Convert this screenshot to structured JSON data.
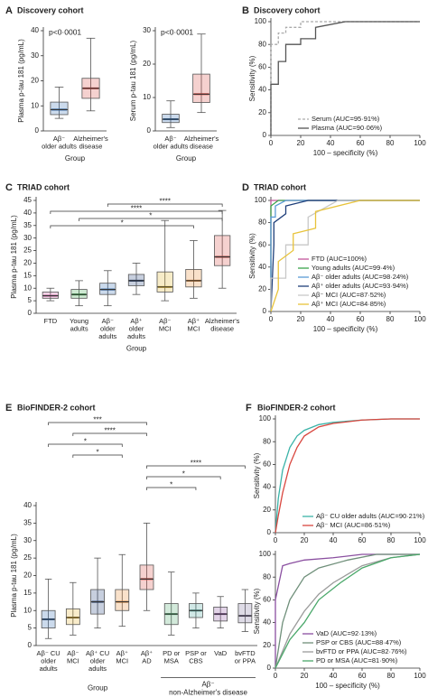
{
  "chart_data": [
    {
      "type": "box",
      "panel": "A",
      "title": "Discovery cohort",
      "annotation": "p<0·0001",
      "ylabel": "Plasma p-tau 181 (pg/mL)",
      "xlabel": "Group",
      "categories": [
        [
          "Aβ⁻",
          "older adults"
        ],
        [
          "Alzheimer's",
          "disease"
        ]
      ],
      "boxes": [
        [
          5,
          6.5,
          8.5,
          11.5,
          17.5
        ],
        [
          8,
          13,
          17,
          21,
          37
        ]
      ],
      "colors": [
        "#2f6db5",
        "#d9463e"
      ],
      "ylim": [
        0,
        40
      ],
      "yticks": [
        0,
        10,
        20,
        30,
        40
      ]
    },
    {
      "type": "box",
      "annotation": "p<0·0001",
      "ylabel": "Serum p-tau 181 (pg/mL)",
      "xlabel": "Group",
      "categories": [
        [
          "Aβ⁻",
          "older adults"
        ],
        [
          "Alzheimer's",
          "disease"
        ]
      ],
      "boxes": [
        [
          1,
          2.5,
          3.5,
          5,
          9
        ],
        [
          5.5,
          8.5,
          11,
          17,
          29
        ]
      ],
      "colors": [
        "#2f6db5",
        "#d9463e"
      ],
      "ylim": [
        0,
        30
      ],
      "yticks": [
        0,
        10,
        20,
        30
      ]
    },
    {
      "type": "line",
      "panel": "B",
      "title": "Discovery cohort",
      "xlabel": "100 – specificity (%)",
      "ylabel": "Sensitivity (%)",
      "xlim": [
        0,
        100
      ],
      "ylim": [
        0,
        100
      ],
      "xticks": [
        0,
        20,
        40,
        60,
        80,
        100
      ],
      "yticks": [
        0,
        20,
        40,
        60,
        80,
        100
      ],
      "legend": "lower right",
      "series": [
        {
          "name": "Serum (AUC=95·91%)",
          "color": "#aaaaaa",
          "dash": true,
          "x": [
            0,
            0,
            5,
            5,
            10,
            10,
            20,
            20,
            100
          ],
          "values": [
            0,
            80,
            80,
            90,
            90,
            95,
            95,
            100,
            100
          ]
        },
        {
          "name": "Plasma (AUC=90·06%)",
          "color": "#555555",
          "dash": false,
          "x": [
            0,
            0,
            5,
            5,
            10,
            10,
            20,
            20,
            30,
            30,
            50,
            100
          ],
          "values": [
            0,
            45,
            45,
            65,
            65,
            80,
            80,
            85,
            85,
            95,
            100,
            100
          ]
        }
      ]
    },
    {
      "type": "box",
      "panel": "C",
      "title": "TRIAD cohort",
      "ylabel": "Plasma p-tau 181 (pg/mL)",
      "xlabel": "Group",
      "categories": [
        [
          "FTD"
        ],
        [
          "Young",
          "adults"
        ],
        [
          "Aβ⁻",
          "older",
          "adults"
        ],
        [
          "Aβ⁺",
          "older",
          "adults"
        ],
        [
          "Aβ⁻",
          "MCI"
        ],
        [
          "Aβ⁺",
          "MCI"
        ],
        [
          "Alzheimer's",
          "disease"
        ]
      ],
      "boxes": [
        [
          5,
          6,
          7,
          8.5,
          10
        ],
        [
          3,
          6,
          7.5,
          9.5,
          13
        ],
        [
          3,
          7.5,
          9.5,
          12,
          17
        ],
        [
          7.5,
          11,
          13,
          15.5,
          20
        ],
        [
          5,
          8.5,
          10.5,
          16.5,
          37
        ],
        [
          6,
          10.5,
          13,
          17.5,
          29
        ],
        [
          10,
          19,
          22.5,
          31,
          41
        ]
      ],
      "colors": [
        "#c2569a",
        "#3aa34a",
        "#2f6db5",
        "#1f3f7a",
        "#e0b422",
        "#e8872a",
        "#d9463e"
      ],
      "ylim": [
        0,
        45
      ],
      "yticks": [
        0,
        5,
        10,
        15,
        20,
        25,
        30,
        35,
        40,
        45
      ],
      "comparisons": [
        {
          "from": 2,
          "to": 6,
          "label": "****"
        },
        {
          "from": 0,
          "to": 6,
          "label": "****"
        },
        {
          "from": 1,
          "to": 6,
          "label": "*"
        },
        {
          "from": 0,
          "to": 5,
          "label": "*"
        }
      ]
    },
    {
      "type": "line",
      "panel": "D",
      "title": "TRIAD cohort",
      "xlabel": "100 – specificity (%)",
      "ylabel": "Sensitivity (%)",
      "xlim": [
        0,
        100
      ],
      "ylim": [
        0,
        100
      ],
      "xticks": [
        0,
        20,
        40,
        60,
        80,
        100
      ],
      "yticks": [
        0,
        20,
        40,
        60,
        80,
        100
      ],
      "legend": "lower right",
      "series": [
        {
          "name": "FTD (AUC=100%)",
          "color": "#c2569a",
          "dash": false,
          "x": [
            0,
            0,
            100
          ],
          "values": [
            0,
            100,
            100
          ]
        },
        {
          "name": "Young adults (AUC=99·4%)",
          "color": "#3aa34a",
          "dash": false,
          "x": [
            0,
            0,
            5,
            100
          ],
          "values": [
            0,
            95,
            100,
            100
          ]
        },
        {
          "name": "Aβ⁻ older adults (AUC=98·24%)",
          "color": "#5b9bd5",
          "dash": false,
          "x": [
            0,
            0,
            3,
            3,
            10,
            100
          ],
          "values": [
            0,
            85,
            85,
            95,
            100,
            100
          ]
        },
        {
          "name": "Aβ⁺ older adults (AUC=93·94%)",
          "color": "#1f3f7a",
          "dash": false,
          "x": [
            0,
            2,
            2,
            10,
            10,
            25,
            100
          ],
          "values": [
            0,
            60,
            80,
            88,
            95,
            100,
            100
          ]
        },
        {
          "name": "Aβ⁻ MCI (AUC=87·52%)",
          "color": "#c8c8c8",
          "dash": false,
          "x": [
            0,
            0,
            10,
            10,
            25,
            25,
            45,
            100
          ],
          "values": [
            0,
            30,
            30,
            60,
            60,
            85,
            100,
            100
          ]
        },
        {
          "name": "Aβ⁺ MCI (AUC=84·85%)",
          "color": "#e8c33a",
          "dash": false,
          "x": [
            0,
            5,
            5,
            15,
            15,
            30,
            30,
            60,
            100
          ],
          "values": [
            0,
            20,
            45,
            55,
            70,
            75,
            90,
            100,
            100
          ]
        }
      ]
    },
    {
      "type": "box",
      "panel": "E",
      "title": "BioFINDER-2 cohort",
      "ylabel": "Plasma p-tau 181 (pg/mL)",
      "xlabel": "Group",
      "group_label": [
        "Aβ⁻",
        "non-Alzheimer's disease"
      ],
      "categories": [
        [
          "Aβ⁻ CU",
          "older",
          "adults"
        ],
        [
          "Aβ⁻",
          "MCI"
        ],
        [
          "Aβ⁺ CU",
          "older",
          "adults"
        ],
        [
          "Aβ⁺",
          "MCI"
        ],
        [
          "Aβ⁺",
          "AD"
        ],
        [
          "PD or",
          "MSA"
        ],
        [
          "PSP or",
          "CBS"
        ],
        [
          "VaD"
        ],
        [
          "bvFTD",
          "or PPA"
        ]
      ],
      "boxes": [
        [
          2,
          5,
          7.5,
          10,
          19
        ],
        [
          3,
          6,
          8,
          10.5,
          18
        ],
        [
          5,
          9,
          12.5,
          16,
          25
        ],
        [
          5.5,
          10,
          12.5,
          16,
          26
        ],
        [
          10,
          16,
          19,
          23,
          35
        ],
        [
          3,
          6,
          9,
          12,
          21
        ],
        [
          5,
          8,
          10,
          12,
          15
        ],
        [
          5,
          7,
          9,
          11,
          14
        ],
        [
          4,
          6.5,
          8.5,
          12,
          16
        ]
      ],
      "colors": [
        "#2f6db5",
        "#e8b22a",
        "#1f3f7a",
        "#e8872a",
        "#d9463e",
        "#4aa86a",
        "#47a39a",
        "#8a4fa0",
        "#7c6f9c"
      ],
      "ylim": [
        0,
        40
      ],
      "yticks": [
        0,
        5,
        10,
        15,
        20,
        25,
        30,
        35,
        40
      ],
      "comparisons": [
        {
          "from": 0,
          "to": 4,
          "label": "***"
        },
        {
          "from": 1,
          "to": 4,
          "label": "****"
        },
        {
          "from": 0,
          "to": 3,
          "label": "*"
        },
        {
          "from": 1,
          "to": 3,
          "label": "*"
        },
        {
          "from": 4,
          "to": 8,
          "label": "****"
        },
        {
          "from": 4,
          "to": 7,
          "label": "*"
        },
        {
          "from": 4,
          "to": 6,
          "label": "*"
        }
      ]
    },
    {
      "type": "line",
      "panel": "F",
      "title": "BioFINDER-2 cohort",
      "ylabel": "Sensitivity (%)",
      "xlim": [
        0,
        100
      ],
      "ylim": [
        0,
        100
      ],
      "xticks": [
        0,
        20,
        40,
        60,
        80,
        100
      ],
      "yticks": [
        0,
        20,
        40,
        60,
        80,
        100
      ],
      "legend": "lower right",
      "series": [
        {
          "name": "Aβ⁻ CU older adults (AUC=90·21%)",
          "color": "#3bb3a8",
          "dash": false,
          "x": [
            0,
            2,
            5,
            10,
            15,
            20,
            30,
            40,
            60,
            80,
            100
          ],
          "values": [
            0,
            30,
            55,
            75,
            85,
            90,
            95,
            97,
            99,
            100,
            100
          ]
        },
        {
          "name": "Aβ⁻ MCI (AUC=86·51%)",
          "color": "#d9463e",
          "dash": false,
          "x": [
            0,
            2,
            5,
            10,
            15,
            20,
            30,
            40,
            60,
            80,
            100
          ],
          "values": [
            0,
            15,
            35,
            60,
            75,
            85,
            93,
            96,
            99,
            100,
            100
          ]
        }
      ]
    },
    {
      "type": "line",
      "xlabel": "100 – specificity (%)",
      "ylabel": "Sensitivity (%)",
      "xlim": [
        0,
        100
      ],
      "ylim": [
        0,
        100
      ],
      "xticks": [
        0,
        20,
        40,
        60,
        80,
        100
      ],
      "yticks": [
        0,
        20,
        40,
        60,
        80,
        100
      ],
      "legend": "lower right",
      "series": [
        {
          "name": "VaD (AUC=92·13%)",
          "color": "#8a4fa0",
          "dash": false,
          "x": [
            0,
            0,
            5,
            10,
            20,
            40,
            60,
            100
          ],
          "values": [
            0,
            60,
            90,
            92,
            95,
            97,
            100,
            100
          ]
        },
        {
          "name": "PSP or CBS (AUC=88·47%)",
          "color": "#6f8f7a",
          "dash": false,
          "x": [
            0,
            5,
            10,
            20,
            30,
            50,
            70,
            100
          ],
          "values": [
            0,
            40,
            60,
            80,
            88,
            95,
            100,
            100
          ]
        },
        {
          "name": "bvFTD or PPA (AUC=82·76%)",
          "color": "#9a9a9a",
          "dash": false,
          "x": [
            0,
            10,
            20,
            30,
            40,
            60,
            80,
            100
          ],
          "values": [
            0,
            30,
            50,
            65,
            75,
            90,
            97,
            100
          ]
        },
        {
          "name": "PD or MSA (AUC=81·90%)",
          "color": "#4aa86a",
          "dash": false,
          "x": [
            0,
            10,
            20,
            30,
            45,
            60,
            80,
            100
          ],
          "values": [
            0,
            25,
            40,
            60,
            75,
            88,
            97,
            100
          ]
        }
      ]
    }
  ]
}
